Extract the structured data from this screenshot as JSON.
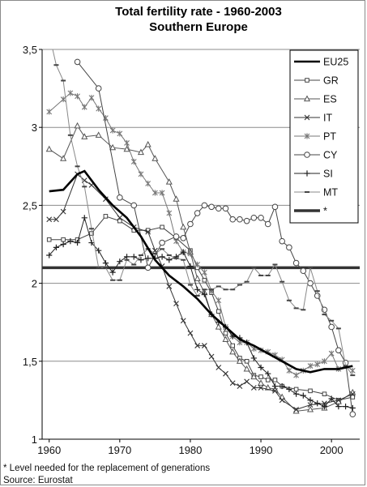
{
  "chart_data": {
    "type": "line",
    "title": "Total fertility rate - 1960-2003",
    "subtitle": "Southern Europe",
    "xlabel": "",
    "ylabel": "",
    "xlim": [
      1959,
      2004
    ],
    "ylim": [
      1,
      3.5
    ],
    "x_ticks": [
      1960,
      1970,
      1980,
      1990,
      2000
    ],
    "y_ticks": [
      1,
      1.5,
      2,
      2.5,
      3,
      3.5
    ],
    "y_tick_labels": [
      "1",
      "1,5",
      "2",
      "2,5",
      "3",
      "3,5"
    ],
    "grid": "horizontal",
    "legend_position": "top-right",
    "footnote": "* Level needed for the replacement of generations",
    "source": "Source: Eurostat",
    "series": [
      {
        "name": "EU25",
        "style": "thick",
        "color": "#000000",
        "points": [
          [
            1960,
            2.59
          ],
          [
            1962,
            2.6
          ],
          [
            1964,
            2.7
          ],
          [
            1965,
            2.72
          ],
          [
            1967,
            2.6
          ],
          [
            1969,
            2.5
          ],
          [
            1971,
            2.42
          ],
          [
            1973,
            2.3
          ],
          [
            1975,
            2.15
          ],
          [
            1977,
            2.05
          ],
          [
            1979,
            1.98
          ],
          [
            1981,
            1.9
          ],
          [
            1983,
            1.8
          ],
          [
            1985,
            1.72
          ],
          [
            1987,
            1.64
          ],
          [
            1989,
            1.6
          ],
          [
            1991,
            1.55
          ],
          [
            1993,
            1.5
          ],
          [
            1995,
            1.45
          ],
          [
            1997,
            1.43
          ],
          [
            1999,
            1.45
          ],
          [
            2001,
            1.45
          ],
          [
            2003,
            1.47
          ]
        ]
      },
      {
        "name": "GR",
        "style": "square",
        "color": "#444444",
        "points": [
          [
            1960,
            2.28
          ],
          [
            1962,
            2.28
          ],
          [
            1964,
            2.28
          ],
          [
            1966,
            2.32
          ],
          [
            1968,
            2.43
          ],
          [
            1970,
            2.4
          ],
          [
            1972,
            2.34
          ],
          [
            1974,
            2.34
          ],
          [
            1976,
            2.36
          ],
          [
            1978,
            2.29
          ],
          [
            1980,
            2.21
          ],
          [
            1981,
            2.1
          ],
          [
            1982,
            2.02
          ],
          [
            1983,
            1.94
          ],
          [
            1984,
            1.82
          ],
          [
            1985,
            1.68
          ],
          [
            1986,
            1.6
          ],
          [
            1987,
            1.52
          ],
          [
            1988,
            1.5
          ],
          [
            1989,
            1.41
          ],
          [
            1990,
            1.4
          ],
          [
            1991,
            1.38
          ],
          [
            1992,
            1.38
          ],
          [
            1993,
            1.34
          ],
          [
            1995,
            1.32
          ],
          [
            1997,
            1.31
          ],
          [
            1999,
            1.29
          ],
          [
            2001,
            1.25
          ],
          [
            2003,
            1.27
          ]
        ]
      },
      {
        "name": "ES",
        "style": "triangle",
        "color": "#555555",
        "points": [
          [
            1960,
            2.86
          ],
          [
            1962,
            2.8
          ],
          [
            1964,
            3.01
          ],
          [
            1965,
            2.94
          ],
          [
            1967,
            2.95
          ],
          [
            1969,
            2.87
          ],
          [
            1971,
            2.86
          ],
          [
            1973,
            2.84
          ],
          [
            1974,
            2.89
          ],
          [
            1975,
            2.8
          ],
          [
            1977,
            2.65
          ],
          [
            1978,
            2.54
          ],
          [
            1979,
            2.36
          ],
          [
            1980,
            2.2
          ],
          [
            1981,
            2.03
          ],
          [
            1982,
            1.94
          ],
          [
            1983,
            1.8
          ],
          [
            1984,
            1.72
          ],
          [
            1985,
            1.64
          ],
          [
            1986,
            1.56
          ],
          [
            1987,
            1.5
          ],
          [
            1988,
            1.45
          ],
          [
            1989,
            1.4
          ],
          [
            1990,
            1.36
          ],
          [
            1991,
            1.33
          ],
          [
            1992,
            1.32
          ],
          [
            1993,
            1.27
          ],
          [
            1995,
            1.18
          ],
          [
            1997,
            1.19
          ],
          [
            1999,
            1.2
          ],
          [
            2001,
            1.24
          ],
          [
            2003,
            1.3
          ]
        ]
      },
      {
        "name": "IT",
        "style": "cross",
        "color": "#333333",
        "points": [
          [
            1960,
            2.41
          ],
          [
            1961,
            2.41
          ],
          [
            1962,
            2.46
          ],
          [
            1964,
            2.7
          ],
          [
            1965,
            2.66
          ],
          [
            1966,
            2.63
          ],
          [
            1968,
            2.54
          ],
          [
            1970,
            2.42
          ],
          [
            1972,
            2.36
          ],
          [
            1974,
            2.33
          ],
          [
            1975,
            2.21
          ],
          [
            1976,
            2.11
          ],
          [
            1977,
            1.98
          ],
          [
            1978,
            1.87
          ],
          [
            1979,
            1.76
          ],
          [
            1980,
            1.68
          ],
          [
            1981,
            1.6
          ],
          [
            1982,
            1.6
          ],
          [
            1983,
            1.53
          ],
          [
            1984,
            1.46
          ],
          [
            1985,
            1.42
          ],
          [
            1986,
            1.36
          ],
          [
            1987,
            1.34
          ],
          [
            1988,
            1.37
          ],
          [
            1989,
            1.33
          ],
          [
            1990,
            1.33
          ],
          [
            1992,
            1.31
          ],
          [
            1993,
            1.25
          ],
          [
            1995,
            1.19
          ],
          [
            1997,
            1.22
          ],
          [
            1999,
            1.23
          ],
          [
            2001,
            1.25
          ],
          [
            2003,
            1.29
          ]
        ]
      },
      {
        "name": "PT",
        "style": "star",
        "color": "#777777",
        "points": [
          [
            1960,
            3.1
          ],
          [
            1962,
            3.18
          ],
          [
            1963,
            3.22
          ],
          [
            1964,
            3.2
          ],
          [
            1965,
            3.13
          ],
          [
            1966,
            3.19
          ],
          [
            1967,
            3.12
          ],
          [
            1968,
            3.06
          ],
          [
            1969,
            2.98
          ],
          [
            1970,
            2.96
          ],
          [
            1971,
            2.9
          ],
          [
            1972,
            2.78
          ],
          [
            1973,
            2.7
          ],
          [
            1974,
            2.64
          ],
          [
            1975,
            2.58
          ],
          [
            1976,
            2.58
          ],
          [
            1977,
            2.45
          ],
          [
            1978,
            2.27
          ],
          [
            1979,
            2.2
          ],
          [
            1980,
            2.19
          ],
          [
            1981,
            2.12
          ],
          [
            1982,
            2.07
          ],
          [
            1983,
            1.95
          ],
          [
            1984,
            1.89
          ],
          [
            1985,
            1.72
          ],
          [
            1986,
            1.66
          ],
          [
            1987,
            1.62
          ],
          [
            1988,
            1.62
          ],
          [
            1989,
            1.58
          ],
          [
            1990,
            1.57
          ],
          [
            1991,
            1.56
          ],
          [
            1992,
            1.54
          ],
          [
            1993,
            1.51
          ],
          [
            1994,
            1.44
          ],
          [
            1995,
            1.41
          ],
          [
            1996,
            1.44
          ],
          [
            1997,
            1.47
          ],
          [
            1998,
            1.48
          ],
          [
            1999,
            1.5
          ],
          [
            2000,
            1.55
          ],
          [
            2001,
            1.45
          ],
          [
            2002,
            1.47
          ],
          [
            2003,
            1.44
          ]
        ]
      },
      {
        "name": "CY",
        "style": "circle",
        "color": "#444444",
        "points": [
          [
            1964,
            3.42
          ],
          [
            1967,
            3.25
          ],
          [
            1970,
            2.55
          ],
          [
            1972,
            2.5
          ],
          [
            1974,
            2.1
          ],
          [
            1976,
            2.26
          ],
          [
            1978,
            2.3
          ],
          [
            1979,
            2.29
          ],
          [
            1980,
            2.38
          ],
          [
            1981,
            2.45
          ],
          [
            1982,
            2.5
          ],
          [
            1983,
            2.49
          ],
          [
            1984,
            2.48
          ],
          [
            1985,
            2.48
          ],
          [
            1986,
            2.41
          ],
          [
            1987,
            2.41
          ],
          [
            1988,
            2.4
          ],
          [
            1989,
            2.42
          ],
          [
            1990,
            2.42
          ],
          [
            1991,
            2.38
          ],
          [
            1992,
            2.49
          ],
          [
            1993,
            2.27
          ],
          [
            1994,
            2.23
          ],
          [
            1995,
            2.13
          ],
          [
            1996,
            2.08
          ],
          [
            1997,
            2.0
          ],
          [
            1998,
            1.92
          ],
          [
            1999,
            1.83
          ],
          [
            2000,
            1.72
          ],
          [
            2001,
            1.57
          ],
          [
            2002,
            1.49
          ],
          [
            2003,
            1.16
          ]
        ]
      },
      {
        "name": "SI",
        "style": "plus",
        "color": "#222222",
        "points": [
          [
            1960,
            2.18
          ],
          [
            1961,
            2.23
          ],
          [
            1962,
            2.25
          ],
          [
            1963,
            2.27
          ],
          [
            1964,
            2.26
          ],
          [
            1965,
            2.42
          ],
          [
            1966,
            2.26
          ],
          [
            1967,
            2.21
          ],
          [
            1968,
            2.13
          ],
          [
            1969,
            2.07
          ],
          [
            1970,
            2.14
          ],
          [
            1971,
            2.17
          ],
          [
            1972,
            2.17
          ],
          [
            1973,
            2.15
          ],
          [
            1974,
            2.16
          ],
          [
            1975,
            2.16
          ],
          [
            1976,
            2.17
          ],
          [
            1977,
            2.15
          ],
          [
            1978,
            2.17
          ],
          [
            1979,
            2.2
          ],
          [
            1980,
            2.11
          ],
          [
            1981,
            1.96
          ],
          [
            1982,
            1.93
          ],
          [
            1983,
            1.8
          ],
          [
            1984,
            1.75
          ],
          [
            1985,
            1.72
          ],
          [
            1986,
            1.66
          ],
          [
            1987,
            1.65
          ],
          [
            1988,
            1.62
          ],
          [
            1989,
            1.52
          ],
          [
            1990,
            1.46
          ],
          [
            1991,
            1.42
          ],
          [
            1992,
            1.34
          ],
          [
            1993,
            1.34
          ],
          [
            1994,
            1.32
          ],
          [
            1995,
            1.29
          ],
          [
            1996,
            1.28
          ],
          [
            1997,
            1.25
          ],
          [
            1998,
            1.23
          ],
          [
            1999,
            1.21
          ],
          [
            2000,
            1.26
          ],
          [
            2001,
            1.21
          ],
          [
            2002,
            1.21
          ],
          [
            2003,
            1.2
          ]
        ]
      },
      {
        "name": "MT",
        "style": "dash",
        "color": "#888888",
        "points": [
          [
            1960,
            3.6
          ],
          [
            1961,
            3.4
          ],
          [
            1962,
            3.3
          ],
          [
            1963,
            2.95
          ],
          [
            1964,
            2.75
          ],
          [
            1965,
            2.62
          ],
          [
            1966,
            2.35
          ],
          [
            1967,
            2.1
          ],
          [
            1968,
            2.1
          ],
          [
            1969,
            2.02
          ],
          [
            1970,
            2.02
          ],
          [
            1971,
            2.15
          ],
          [
            1972,
            2.12
          ],
          [
            1973,
            2.18
          ],
          [
            1974,
            2.22
          ],
          [
            1975,
            2.19
          ],
          [
            1976,
            2.22
          ],
          [
            1977,
            2.18
          ],
          [
            1978,
            2.16
          ],
          [
            1979,
            2.15
          ],
          [
            1980,
            1.99
          ],
          [
            1981,
            1.92
          ],
          [
            1982,
            1.96
          ],
          [
            1983,
            1.96
          ],
          [
            1984,
            1.98
          ],
          [
            1985,
            1.96
          ],
          [
            1986,
            1.96
          ],
          [
            1987,
            1.99
          ],
          [
            1988,
            2.01
          ],
          [
            1989,
            2.1
          ],
          [
            1990,
            2.05
          ],
          [
            1991,
            2.05
          ],
          [
            1992,
            2.12
          ],
          [
            1993,
            2.01
          ],
          [
            1994,
            1.89
          ],
          [
            1995,
            1.84
          ],
          [
            1996,
            1.83
          ],
          [
            1997,
            2.1
          ],
          [
            1998,
            1.95
          ],
          [
            1999,
            1.8
          ],
          [
            2000,
            1.76
          ],
          [
            2001,
            1.71
          ],
          [
            2002,
            1.47
          ],
          [
            2003,
            1.41
          ]
        ]
      },
      {
        "name": "*",
        "style": "reference",
        "color": "#333333",
        "points": [
          [
            1959,
            2.1
          ],
          [
            2004,
            2.1
          ]
        ]
      }
    ]
  }
}
